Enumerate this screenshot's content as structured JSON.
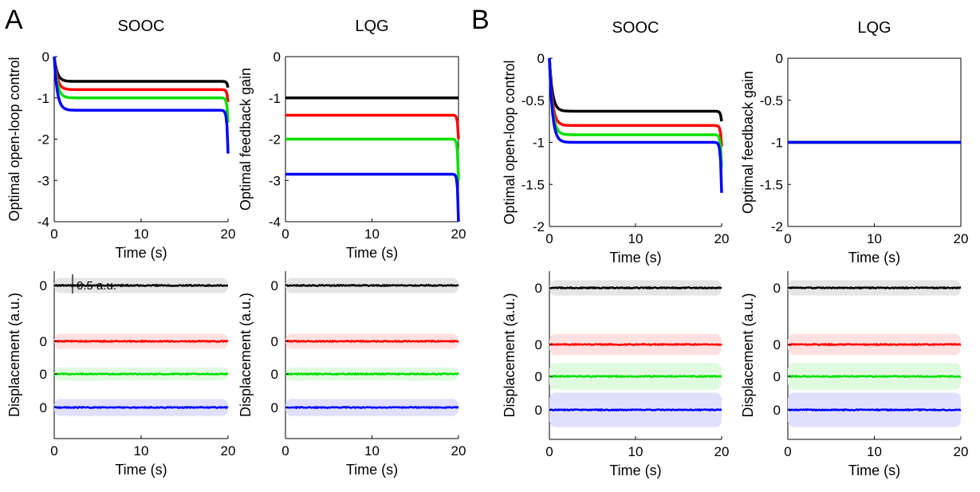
{
  "panels": [
    {
      "letter": "A"
    },
    {
      "letter": "B"
    }
  ],
  "chart_data": [
    {
      "panel": "A",
      "type": "line",
      "kind": "profile",
      "title": "SOOC",
      "xlabel": "Time (s)",
      "ylabel": "Optimal open-loop control",
      "xlim": [
        0,
        20
      ],
      "ylim": [
        -4,
        0
      ],
      "xticks": [
        "0",
        "10",
        "20"
      ],
      "yticks": [
        "-4",
        "-3",
        "-2",
        "-1",
        "0"
      ],
      "grid": false,
      "series": [
        {
          "color": "#000000",
          "plateau": -0.6,
          "end": -0.75
        },
        {
          "color": "#ff0000",
          "plateau": -0.8,
          "end": -1.1
        },
        {
          "color": "#00e000",
          "plateau": -1.0,
          "end": -1.6
        },
        {
          "color": "#0000ff",
          "plateau": -1.3,
          "end": -2.35
        }
      ]
    },
    {
      "panel": "A",
      "type": "line",
      "kind": "flat",
      "title": "LQG",
      "xlabel": "Time (s)",
      "ylabel": "Optimal feedback gain",
      "xlim": [
        0,
        20
      ],
      "ylim": [
        -4,
        0
      ],
      "xticks": [
        "0",
        "10",
        "20"
      ],
      "yticks": [
        "-4",
        "-3",
        "-2",
        "-1",
        "0"
      ],
      "grid": false,
      "series": [
        {
          "color": "#000000",
          "plateau": -1.0,
          "end": -1.0
        },
        {
          "color": "#ff0000",
          "plateau": -1.42,
          "end": -2.0
        },
        {
          "color": "#00e000",
          "plateau": -2.0,
          "end": -3.0
        },
        {
          "color": "#0000ff",
          "plateau": -2.85,
          "end": -4.0
        }
      ]
    },
    {
      "panel": "A",
      "type": "line",
      "kind": "displacement",
      "title": "",
      "xlabel": "Time (s)",
      "ylabel": "Displacement (a.u.)",
      "xlim": [
        0,
        20
      ],
      "xticks": [
        "0",
        "10",
        "20"
      ],
      "ytick_label": "0",
      "scalebar": "0.5 a.u.",
      "grid": false,
      "series": [
        {
          "color": "#000000",
          "band": "#e5e5e5",
          "row": 0,
          "spread": 0.4
        },
        {
          "color": "#ff0000",
          "band": "#fde0e0",
          "row": 1,
          "spread": 0.4
        },
        {
          "color": "#00e000",
          "band": "#e0fae0",
          "row": 2,
          "spread": 0.35
        },
        {
          "color": "#0000ff",
          "band": "#e0e0fc",
          "row": 3,
          "spread": 0.45
        }
      ]
    },
    {
      "panel": "A",
      "type": "line",
      "kind": "displacement",
      "title": "",
      "xlabel": "Time (s)",
      "ylabel": "Displacement (a.u.)",
      "xlim": [
        0,
        20
      ],
      "xticks": [
        "0",
        "10",
        "20"
      ],
      "ytick_label": "0",
      "grid": false,
      "series": [
        {
          "color": "#000000",
          "band": "#e5e5e5",
          "row": 0,
          "spread": 0.4
        },
        {
          "color": "#ff0000",
          "band": "#fde0e0",
          "row": 1,
          "spread": 0.4
        },
        {
          "color": "#00e000",
          "band": "#e0fae0",
          "row": 2,
          "spread": 0.35
        },
        {
          "color": "#0000ff",
          "band": "#e0e0fc",
          "row": 3,
          "spread": 0.45
        }
      ]
    },
    {
      "panel": "B",
      "type": "line",
      "kind": "profile",
      "title": "SOOC",
      "xlabel": "Time (s)",
      "ylabel": "Optimal open-loop control",
      "xlim": [
        0,
        20
      ],
      "ylim": [
        -2,
        0
      ],
      "xticks": [
        "0",
        "10",
        "20"
      ],
      "yticks": [
        "-2",
        "-1.5",
        "-1",
        "-0.5",
        "0"
      ],
      "grid": false,
      "series": [
        {
          "color": "#000000",
          "plateau": -0.63,
          "end": -0.75
        },
        {
          "color": "#ff0000",
          "plateau": -0.8,
          "end": -1.05
        },
        {
          "color": "#00e000",
          "plateau": -0.91,
          "end": -1.3
        },
        {
          "color": "#0000ff",
          "plateau": -1.0,
          "end": -1.6
        }
      ]
    },
    {
      "panel": "B",
      "type": "line",
      "kind": "flat",
      "title": "LQG",
      "xlabel": "Time (s)",
      "ylabel": "Optimal feedback gain",
      "xlim": [
        0,
        20
      ],
      "ylim": [
        -2,
        0
      ],
      "xticks": [
        "0",
        "10",
        "20"
      ],
      "yticks": [
        "-2",
        "-1.5",
        "-1",
        "-0.5",
        "0"
      ],
      "grid": false,
      "series": [
        {
          "color": "#000000",
          "plateau": -1.0,
          "end": -1.0
        },
        {
          "color": "#ff0000",
          "plateau": -1.0,
          "end": -1.0
        },
        {
          "color": "#00e000",
          "plateau": -1.0,
          "end": -1.0
        },
        {
          "color": "#0000ff",
          "plateau": -1.0,
          "end": -1.0
        }
      ]
    },
    {
      "panel": "B",
      "type": "line",
      "kind": "displacement",
      "title": "",
      "xlabel": "Time (s)",
      "ylabel": "Displacement (a.u.)",
      "xlim": [
        0,
        20
      ],
      "xticks": [
        "0",
        "10",
        "20"
      ],
      "ytick_label": "0",
      "grid": false,
      "series": [
        {
          "color": "#000000",
          "band": "#e5e5e5",
          "row": 0,
          "spread": 0.4
        },
        {
          "color": "#ff0000",
          "band": "#fde0e0",
          "row": 1,
          "spread": 0.55
        },
        {
          "color": "#00e000",
          "band": "#e0fae0",
          "row": 2,
          "spread": 0.7
        },
        {
          "color": "#0000ff",
          "band": "#e0e0fc",
          "row": 3,
          "spread": 0.9
        }
      ]
    },
    {
      "panel": "B",
      "type": "line",
      "kind": "displacement",
      "title": "",
      "xlabel": "Time (s)",
      "ylabel": "Displacement (a.u.)",
      "xlim": [
        0,
        20
      ],
      "xticks": [
        "0",
        "10",
        "20"
      ],
      "ytick_label": "0",
      "grid": false,
      "series": [
        {
          "color": "#000000",
          "band": "#e5e5e5",
          "row": 0,
          "spread": 0.4
        },
        {
          "color": "#ff0000",
          "band": "#fde0e0",
          "row": 1,
          "spread": 0.55
        },
        {
          "color": "#00e000",
          "band": "#e0fae0",
          "row": 2,
          "spread": 0.7
        },
        {
          "color": "#0000ff",
          "band": "#e0e0fc",
          "row": 3,
          "spread": 0.9
        }
      ]
    }
  ]
}
